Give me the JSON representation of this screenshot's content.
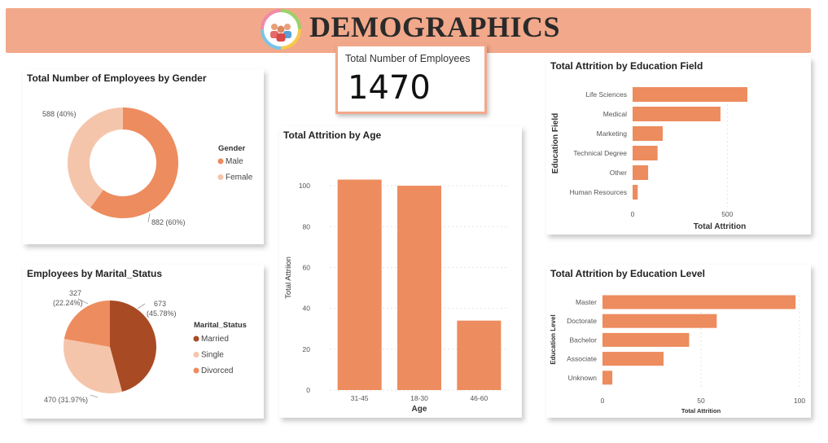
{
  "header": {
    "title": "DEMOGRAPHICS",
    "logo_icon": "people-group-icon"
  },
  "colors": {
    "primary": "#ed8c5e",
    "light": "#f5c5ab",
    "dark": "#a84a24",
    "banner": "#f2a88a"
  },
  "kpi": {
    "label": "Total Number of Employees",
    "value": "1470"
  },
  "gender_chart": {
    "title": "Total Number of Employees by Gender",
    "legend_title": "Gender",
    "slice_labels": [
      "882 (60%)",
      "588 (40%)"
    ]
  },
  "marital_chart": {
    "title": "Employees by Marital_Status",
    "legend_title": "Marital_Status",
    "slice_labels": [
      [
        "673",
        "(45.78%)"
      ],
      [
        "470 (31.97%)"
      ],
      [
        "327",
        "(22.24%)"
      ]
    ]
  },
  "age_chart": {
    "title": "Total Attrition by Age"
  },
  "edu_field_chart": {
    "title": "Total Attrition by Education Field"
  },
  "edu_level_chart": {
    "title": "Total Attrition by Education Level"
  },
  "chart_data": [
    {
      "id": "gender",
      "type": "pie",
      "donut": true,
      "title": "Total Number of Employees by Gender",
      "legend_title": "Gender",
      "legend_position": "right",
      "categories": [
        "Male",
        "Female"
      ],
      "values": [
        882,
        588
      ],
      "colors": [
        "#ed8c5e",
        "#f5c5ab"
      ]
    },
    {
      "id": "marital",
      "type": "pie",
      "title": "Employees by Marital_Status",
      "legend_title": "Marital_Status",
      "legend_position": "right",
      "categories": [
        "Married",
        "Single",
        "Divorced"
      ],
      "values": [
        673,
        470,
        327
      ],
      "colors": [
        "#a84a24",
        "#f5c5ab",
        "#ed8c5e"
      ]
    },
    {
      "id": "age",
      "type": "bar",
      "title": "Total Attrition by Age",
      "categories": [
        "31-45",
        "18-30",
        "46-60"
      ],
      "values": [
        103,
        100,
        34
      ],
      "xlabel": "Age",
      "ylabel": "Total Attriion",
      "ylim": [
        0,
        110
      ],
      "yticks": [
        0,
        20,
        40,
        60,
        80,
        100
      ],
      "grid": true
    },
    {
      "id": "edu_field",
      "type": "bar",
      "orientation": "horizontal",
      "title": "Total Attrition by Education Field",
      "categories": [
        "Life Sciences",
        "Medical",
        "Marketing",
        "Technical Degree",
        "Other",
        "Human Resources"
      ],
      "values": [
        606,
        464,
        159,
        132,
        82,
        27
      ],
      "xlabel": "Total Attrition",
      "ylabel": "Education Field",
      "xlim": [
        0,
        920
      ],
      "xticks": [
        0,
        500
      ],
      "grid": true
    },
    {
      "id": "edu_level",
      "type": "bar",
      "orientation": "horizontal",
      "title": "Total Attrition by Education Level",
      "categories": [
        "Master",
        "Doctorate",
        "Bachelor",
        "Associate",
        "Unknown"
      ],
      "values": [
        98,
        58,
        44,
        31,
        5
      ],
      "xlabel": "Total Attrition",
      "ylabel": "Education Level",
      "xlim": [
        0,
        100
      ],
      "xticks": [
        0,
        50,
        100
      ],
      "grid": true
    }
  ]
}
